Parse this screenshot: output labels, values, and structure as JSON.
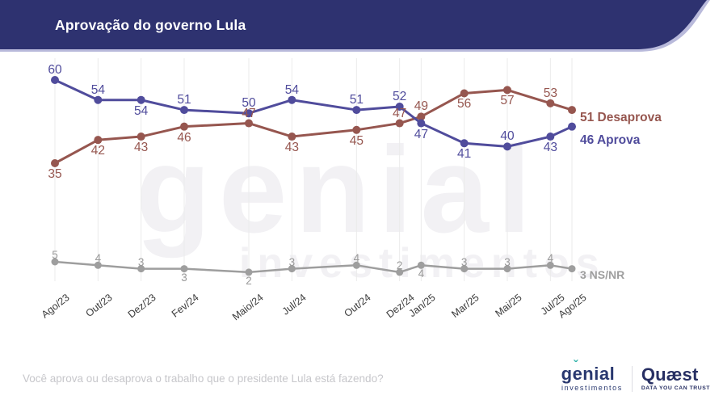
{
  "banner": {
    "title": "Aprovação do governo Lula",
    "bg_color": "#2e3270",
    "edge_color": "#b9badb",
    "text_color": "#ffffff"
  },
  "chart_data": {
    "type": "line",
    "title": "Aprovação do governo Lula",
    "categories": [
      "Ago/23",
      "Out/23",
      "Dez/23",
      "Fev/24",
      "Maio/24",
      "Jul/24",
      "Out/24",
      "Dez/24",
      "Jan/25",
      "Mar/25",
      "Mai/25",
      "Jul/25",
      "Ago/25"
    ],
    "month_index": [
      0,
      2,
      4,
      6,
      9,
      11,
      14,
      16,
      17,
      19,
      21,
      23,
      24
    ],
    "grid": "vertical-per-category",
    "grid_color": "#ebebeb",
    "axis_text_color": "#3b3b3b",
    "x_axis_labels_rotated": true,
    "value_axis_visible": false,
    "legend_position": "end-of-line",
    "series": [
      {
        "name": "Desaprova",
        "color": "#96564f",
        "values": [
          35,
          42,
          43,
          46,
          47,
          43,
          45,
          47,
          49,
          56,
          57,
          53,
          51
        ],
        "label_side": [
          "below",
          "below",
          "below",
          "below",
          "above",
          "below",
          "below",
          "above",
          "above",
          "below",
          "below",
          "above",
          "end"
        ],
        "end_label": "51 Desaprova"
      },
      {
        "name": "Aprova",
        "color": "#504c9c",
        "values": [
          60,
          54,
          54,
          51,
          50,
          54,
          51,
          52,
          47,
          41,
          40,
          43,
          46
        ],
        "label_side": [
          "above",
          "above",
          "below",
          "above",
          "above",
          "above",
          "above",
          "above",
          "below",
          "below",
          "above",
          "below",
          "end"
        ],
        "end_label": "46 Aprova"
      },
      {
        "name": "NS/NR",
        "color": "#9e9e9e",
        "label_color": "#9a9a9a",
        "values": [
          5,
          4,
          3,
          3,
          2,
          3,
          4,
          2,
          4,
          3,
          3,
          4,
          3
        ],
        "label_side": [
          "above",
          "above",
          "above",
          "below",
          "below",
          "above",
          "above",
          "above",
          "below",
          "above",
          "above",
          "above",
          "end"
        ],
        "end_label": "3 NS/NR"
      }
    ]
  },
  "watermark": {
    "line1": "genial",
    "line2": "investimentos"
  },
  "question": "Você aprova ou desaprova o trabalho que o presidente Lula está fazendo?",
  "logos": {
    "genial": {
      "name": "genial",
      "subtitle": "investimentos"
    },
    "quaest": {
      "name": "Quæst",
      "tagline": "DATA YOU CAN TRUST"
    }
  }
}
